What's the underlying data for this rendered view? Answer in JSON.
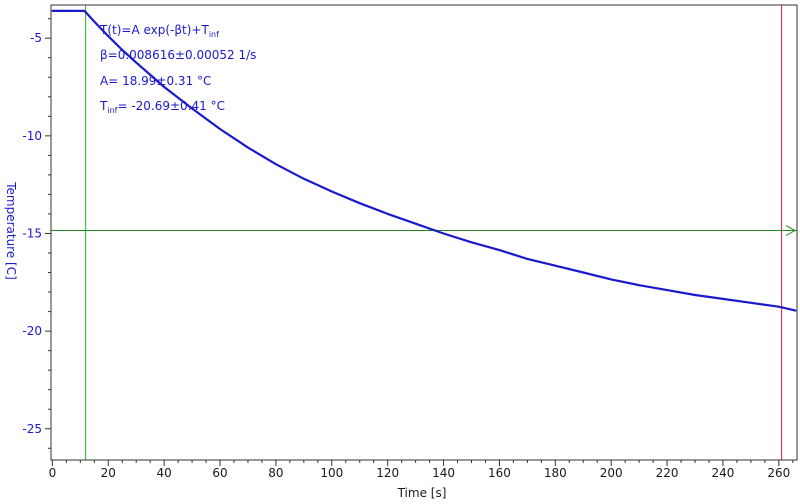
{
  "chart_data": {
    "type": "line",
    "xlabel": "Time [s]",
    "ylabel": "Temperature [C]",
    "xlim": [
      -0.5,
      266.5
    ],
    "ylim": [
      -26.6,
      -3.3
    ],
    "x_ticks": [
      0,
      20,
      40,
      60,
      80,
      100,
      120,
      140,
      160,
      180,
      200,
      220,
      240,
      260
    ],
    "y_ticks": [
      -5,
      -10,
      -15,
      -20,
      -25
    ],
    "grid": false,
    "series": [
      {
        "color": "#1a1acc",
        "x": [
          0,
          11.5,
          15,
          20,
          25,
          30,
          40,
          50,
          60,
          70,
          80,
          90,
          100,
          110,
          120,
          130,
          140,
          150,
          160,
          170,
          180,
          190,
          200,
          210,
          220,
          230,
          240,
          250,
          260,
          266
        ],
        "y": [
          -3.6,
          -3.6,
          -4.15,
          -4.9,
          -5.6,
          -6.25,
          -7.5,
          -8.6,
          -9.65,
          -10.6,
          -11.45,
          -12.2,
          -12.85,
          -13.45,
          -14.0,
          -14.5,
          -15.0,
          -15.45,
          -15.85,
          -16.3,
          -16.65,
          -17.0,
          -17.35,
          -17.65,
          -17.9,
          -18.15,
          -18.35,
          -18.55,
          -18.75,
          -18.95
        ]
      }
    ],
    "annotations": {
      "line1": "T(t)=A exp(-βt)+T",
      "line1_sub": "inf",
      "line2": "β=0.008616±0.00052 1/s",
      "line3": "A= 18.99±0.31 °C",
      "line4_base": "T",
      "line4_sub": "inf",
      "line4_rest": "= -20.69±0.41 °C"
    },
    "markers": {
      "vertical_green_x": 11.9,
      "vertical_red_x": 261,
      "horizontal_green_y": -14.85
    },
    "colors": {
      "data": "#1a1acc",
      "ylabel": "#1a1acc",
      "marker_green": "#22bb22",
      "cursor_green": "#228822",
      "marker_red": "#cc2222"
    }
  }
}
